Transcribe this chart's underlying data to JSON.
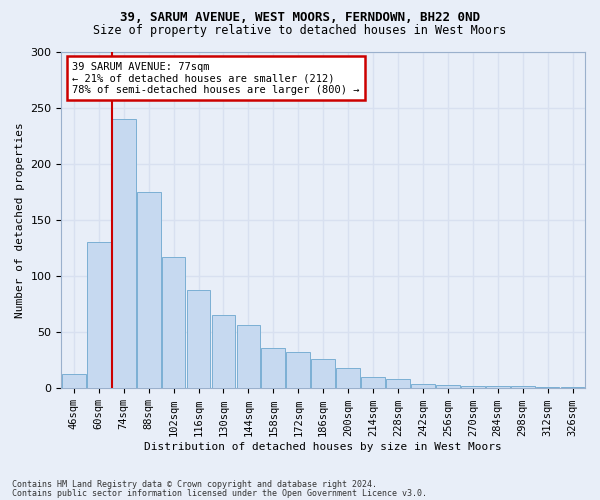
{
  "title1": "39, SARUM AVENUE, WEST MOORS, FERNDOWN, BH22 0ND",
  "title2": "Size of property relative to detached houses in West Moors",
  "xlabel": "Distribution of detached houses by size in West Moors",
  "ylabel": "Number of detached properties",
  "categories": [
    "46sqm",
    "60sqm",
    "74sqm",
    "88sqm",
    "102sqm",
    "116sqm",
    "130sqm",
    "144sqm",
    "158sqm",
    "172sqm",
    "186sqm",
    "200sqm",
    "214sqm",
    "228sqm",
    "242sqm",
    "256sqm",
    "270sqm",
    "284sqm",
    "298sqm",
    "312sqm",
    "326sqm"
  ],
  "bar_heights": [
    13,
    130,
    240,
    175,
    117,
    88,
    65,
    56,
    36,
    32,
    26,
    18,
    10,
    8,
    4,
    3,
    2,
    2,
    2,
    1,
    1
  ],
  "bar_color": "#c6d9f0",
  "bar_edge_color": "#7bafd4",
  "annotation_box_bg": "#ffffff",
  "annotation_box_edge": "#cc0000",
  "vline_color": "#cc0000",
  "vline_x_index": 2,
  "annotation_line1": "39 SARUM AVENUE: 77sqm",
  "annotation_line2": "← 21% of detached houses are smaller (212)",
  "annotation_line3": "78% of semi-detached houses are larger (800) →",
  "footer1": "Contains HM Land Registry data © Crown copyright and database right 2024.",
  "footer2": "Contains public sector information licensed under the Open Government Licence v3.0.",
  "ylim_max": 300,
  "bg_color": "#e8eef8",
  "grid_color": "#d8e0f0",
  "title_fontsize": 9,
  "subtitle_fontsize": 8.5
}
